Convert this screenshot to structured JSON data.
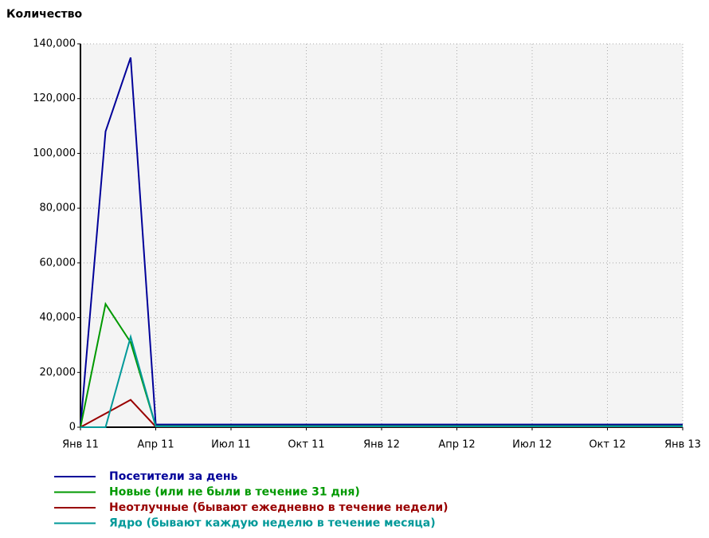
{
  "chart_data": {
    "type": "line",
    "y_label": "Количество",
    "x": [
      "2011-01",
      "2011-02",
      "2011-03",
      "2011-04",
      "2011-05",
      "2011-06",
      "2011-07",
      "2011-08",
      "2011-09",
      "2011-10",
      "2011-11",
      "2011-12",
      "2012-01",
      "2012-02",
      "2012-03",
      "2012-04",
      "2012-05",
      "2012-06",
      "2012-07",
      "2012-08",
      "2012-09",
      "2012-10",
      "2012-11",
      "2012-12",
      "2013-01"
    ],
    "series": [
      {
        "name": "Посетители за день",
        "color": "#000099",
        "values": [
          0,
          108000,
          135000,
          1000,
          1000,
          1000,
          1000,
          1000,
          1000,
          1000,
          1000,
          1000,
          1000,
          1000,
          1000,
          1000,
          1000,
          1000,
          1000,
          1000,
          1000,
          1000,
          1000,
          1000,
          1000
        ]
      },
      {
        "name": "Новые (или не были в течение 31 дня)",
        "color": "#009900",
        "values": [
          0,
          45000,
          31000,
          400,
          400,
          400,
          400,
          400,
          400,
          400,
          400,
          400,
          400,
          400,
          400,
          400,
          400,
          400,
          400,
          400,
          400,
          400,
          400,
          400,
          400
        ]
      },
      {
        "name": "Неотлучные (бывают ежедневно в течение недели)",
        "color": "#990000",
        "values": [
          0,
          5000,
          10000,
          200,
          200,
          200,
          200,
          200,
          200,
          200,
          200,
          200,
          200,
          200,
          200,
          200,
          200,
          200,
          200,
          200,
          200,
          200,
          200,
          200,
          200
        ]
      },
      {
        "name": "Ядро (бывают каждую неделю в течение месяца)",
        "color": "#009999",
        "values": [
          0,
          0,
          33000,
          300,
          300,
          300,
          300,
          300,
          300,
          300,
          300,
          300,
          300,
          300,
          300,
          300,
          300,
          300,
          300,
          300,
          300,
          300,
          300,
          300,
          300
        ]
      }
    ],
    "xlim": [
      "2011-01",
      "2013-01"
    ],
    "xticks": [
      {
        "value": "2011-01",
        "label": "Янв 11"
      },
      {
        "value": "2011-04",
        "label": "Апр 11"
      },
      {
        "value": "2011-07",
        "label": "Июл 11"
      },
      {
        "value": "2011-10",
        "label": "Окт 11"
      },
      {
        "value": "2012-01",
        "label": "Янв 12"
      },
      {
        "value": "2012-04",
        "label": "Апр 12"
      },
      {
        "value": "2012-07",
        "label": "Июл 12"
      },
      {
        "value": "2012-10",
        "label": "Окт 12"
      },
      {
        "value": "2013-01",
        "label": "Янв 13"
      }
    ],
    "ylim": [
      0,
      140000
    ],
    "yticks": [
      0,
      {
        "value": 20000,
        "label": "20,000"
      },
      {
        "value": 40000,
        "label": "40,000"
      },
      {
        "value": 60000,
        "label": "60,000"
      },
      {
        "value": 80000,
        "label": "80,000"
      },
      {
        "value": 100000,
        "label": "100,000"
      },
      {
        "value": 120000,
        "label": "120,000"
      },
      {
        "value": 140000,
        "label": "140,000"
      }
    ],
    "grid": true
  }
}
